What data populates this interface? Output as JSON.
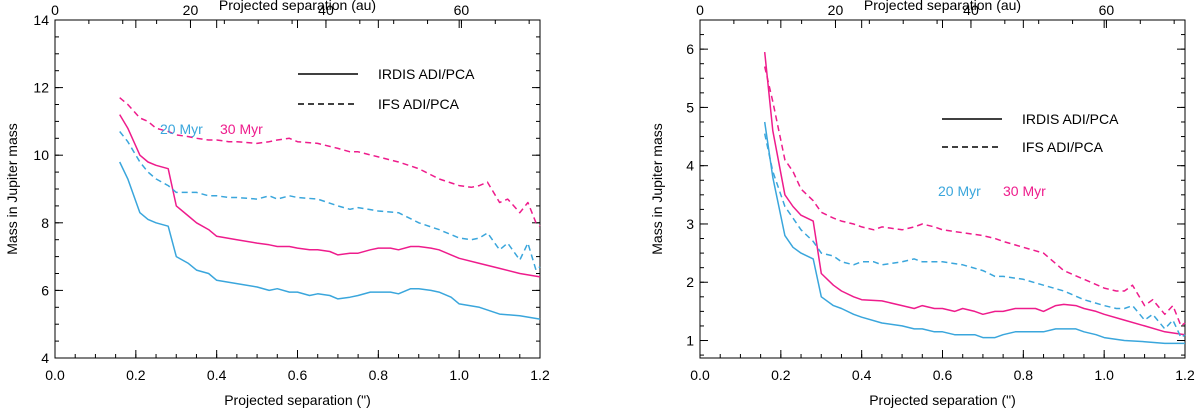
{
  "chart_data": [
    {
      "type": "line",
      "xlabel": "Projected separation (\")",
      "ylabel": "Mass in Jupiter mass",
      "top_xlabel": "Projected separation (au)",
      "xlim": [
        0.0,
        1.2
      ],
      "ylim": [
        4,
        14
      ],
      "xticks": [
        0.0,
        0.2,
        0.4,
        0.6,
        0.8,
        1.0,
        1.2
      ],
      "xtick_labels": [
        "0.0",
        "0.2",
        "0.4",
        "0.6",
        "0.8",
        "1.0",
        "1.2"
      ],
      "yticks": [
        4,
        6,
        8,
        10,
        12,
        14
      ],
      "ytick_labels": [
        "4",
        "6",
        "8",
        "10",
        "12",
        "14"
      ],
      "top_xlim": [
        0,
        71.6
      ],
      "top_xticks": [
        0,
        20,
        40,
        60
      ],
      "top_xtick_labels": [
        "0",
        "20",
        "40",
        "60"
      ],
      "legend": {
        "irdis_label": "IRDIS ADI/PCA",
        "ifs_label": "IFS ADI/PCA",
        "age1_label": "20 Myr",
        "age2_label": "30 Myr"
      },
      "colors": {
        "age1": "#3aa6dc",
        "age2": "#ee1c8c"
      },
      "series": [
        {
          "name": "IRDIS 20 Myr",
          "style": "solid",
          "color": "#3aa6dc",
          "x": [
            0.16,
            0.18,
            0.21,
            0.23,
            0.25,
            0.28,
            0.3,
            0.33,
            0.35,
            0.38,
            0.4,
            0.45,
            0.5,
            0.53,
            0.55,
            0.58,
            0.6,
            0.63,
            0.65,
            0.68,
            0.7,
            0.73,
            0.75,
            0.78,
            0.8,
            0.83,
            0.85,
            0.88,
            0.9,
            0.93,
            0.95,
            0.98,
            1.0,
            1.05,
            1.1,
            1.15,
            1.2
          ],
          "values": [
            9.8,
            9.3,
            8.3,
            8.1,
            8.0,
            7.9,
            7.0,
            6.8,
            6.6,
            6.5,
            6.3,
            6.2,
            6.1,
            6.0,
            6.05,
            5.95,
            5.95,
            5.85,
            5.9,
            5.85,
            5.75,
            5.8,
            5.85,
            5.95,
            5.95,
            5.95,
            5.9,
            6.05,
            6.05,
            6.0,
            5.95,
            5.8,
            5.6,
            5.5,
            5.3,
            5.25,
            5.15
          ]
        },
        {
          "name": "IRDIS 30 Myr",
          "style": "solid",
          "color": "#ee1c8c",
          "x": [
            0.16,
            0.18,
            0.21,
            0.23,
            0.25,
            0.28,
            0.3,
            0.33,
            0.35,
            0.38,
            0.4,
            0.45,
            0.5,
            0.53,
            0.55,
            0.58,
            0.6,
            0.63,
            0.65,
            0.68,
            0.7,
            0.73,
            0.75,
            0.78,
            0.8,
            0.83,
            0.85,
            0.88,
            0.9,
            0.93,
            0.95,
            0.98,
            1.0,
            1.05,
            1.1,
            1.15,
            1.2
          ],
          "values": [
            11.2,
            10.8,
            10.0,
            9.8,
            9.7,
            9.6,
            8.5,
            8.2,
            8.0,
            7.8,
            7.6,
            7.5,
            7.4,
            7.35,
            7.3,
            7.3,
            7.25,
            7.2,
            7.2,
            7.15,
            7.05,
            7.1,
            7.1,
            7.2,
            7.25,
            7.25,
            7.2,
            7.3,
            7.3,
            7.25,
            7.2,
            7.05,
            6.95,
            6.8,
            6.65,
            6.5,
            6.4
          ]
        },
        {
          "name": "IFS 20 Myr",
          "style": "dashed",
          "color": "#3aa6dc",
          "x": [
            0.16,
            0.18,
            0.21,
            0.23,
            0.25,
            0.28,
            0.3,
            0.33,
            0.35,
            0.38,
            0.4,
            0.43,
            0.45,
            0.5,
            0.53,
            0.55,
            0.58,
            0.6,
            0.65,
            0.7,
            0.73,
            0.75,
            0.8,
            0.85,
            0.9,
            0.95,
            1.0,
            1.03,
            1.05,
            1.07,
            1.1,
            1.12,
            1.15,
            1.17,
            1.19,
            1.2
          ],
          "values": [
            10.7,
            10.4,
            9.8,
            9.5,
            9.3,
            9.1,
            8.9,
            8.9,
            8.9,
            8.8,
            8.8,
            8.75,
            8.75,
            8.7,
            8.8,
            8.7,
            8.8,
            8.75,
            8.7,
            8.5,
            8.4,
            8.45,
            8.35,
            8.3,
            8.0,
            7.8,
            7.55,
            7.5,
            7.55,
            7.7,
            7.2,
            7.4,
            6.9,
            7.4,
            6.6,
            6.7
          ]
        },
        {
          "name": "IFS 30 Myr",
          "style": "dashed",
          "color": "#ee1c8c",
          "x": [
            0.16,
            0.18,
            0.21,
            0.23,
            0.25,
            0.28,
            0.3,
            0.33,
            0.35,
            0.38,
            0.4,
            0.43,
            0.45,
            0.5,
            0.53,
            0.55,
            0.58,
            0.6,
            0.65,
            0.7,
            0.73,
            0.75,
            0.8,
            0.85,
            0.9,
            0.95,
            1.0,
            1.03,
            1.05,
            1.07,
            1.1,
            1.12,
            1.15,
            1.17,
            1.19,
            1.2
          ],
          "values": [
            11.7,
            11.5,
            11.1,
            11.0,
            10.8,
            10.7,
            10.6,
            10.55,
            10.5,
            10.45,
            10.45,
            10.4,
            10.4,
            10.35,
            10.4,
            10.45,
            10.5,
            10.4,
            10.35,
            10.2,
            10.1,
            10.1,
            9.95,
            9.8,
            9.6,
            9.3,
            9.1,
            9.05,
            9.1,
            9.2,
            8.6,
            8.7,
            8.3,
            8.6,
            8.0,
            7.9
          ]
        }
      ]
    },
    {
      "type": "line",
      "xlabel": "Projected separation (\")",
      "ylabel": "Mass in Jupiter mass",
      "top_xlabel": "Projected separation (au)",
      "xlim": [
        0.0,
        1.2
      ],
      "ylim": [
        0.7,
        6.5
      ],
      "xticks": [
        0.0,
        0.2,
        0.4,
        0.6,
        0.8,
        1.0,
        1.2
      ],
      "xtick_labels": [
        "0.0",
        "0.2",
        "0.4",
        "0.6",
        "0.8",
        "1.0",
        "1.2"
      ],
      "yticks": [
        1,
        2,
        3,
        4,
        5,
        6
      ],
      "ytick_labels": [
        "1",
        "2",
        "3",
        "4",
        "5",
        "6"
      ],
      "top_xlim": [
        0,
        71.6
      ],
      "top_xticks": [
        0,
        20,
        40,
        60
      ],
      "top_xtick_labels": [
        "0",
        "20",
        "40",
        "60"
      ],
      "legend": {
        "irdis_label": "IRDIS ADI/PCA",
        "ifs_label": "IFS ADI/PCA",
        "age1_label": "20 Myr",
        "age2_label": "30 Myr"
      },
      "colors": {
        "age1": "#3aa6dc",
        "age2": "#ee1c8c"
      },
      "series": [
        {
          "name": "IRDIS 20 Myr",
          "style": "solid",
          "color": "#3aa6dc",
          "x": [
            0.16,
            0.18,
            0.21,
            0.23,
            0.25,
            0.28,
            0.3,
            0.33,
            0.35,
            0.38,
            0.4,
            0.45,
            0.5,
            0.53,
            0.55,
            0.58,
            0.6,
            0.63,
            0.65,
            0.68,
            0.7,
            0.73,
            0.75,
            0.78,
            0.8,
            0.83,
            0.85,
            0.88,
            0.9,
            0.93,
            0.95,
            0.98,
            1.0,
            1.05,
            1.1,
            1.15,
            1.2
          ],
          "values": [
            4.75,
            3.8,
            2.8,
            2.6,
            2.5,
            2.4,
            1.75,
            1.6,
            1.55,
            1.45,
            1.4,
            1.3,
            1.25,
            1.2,
            1.2,
            1.15,
            1.15,
            1.1,
            1.1,
            1.1,
            1.05,
            1.05,
            1.1,
            1.15,
            1.15,
            1.15,
            1.15,
            1.2,
            1.2,
            1.2,
            1.15,
            1.1,
            1.05,
            1.0,
            0.98,
            0.95,
            0.95
          ]
        },
        {
          "name": "IRDIS 30 Myr",
          "style": "solid",
          "color": "#ee1c8c",
          "x": [
            0.16,
            0.18,
            0.21,
            0.23,
            0.25,
            0.28,
            0.3,
            0.33,
            0.35,
            0.38,
            0.4,
            0.45,
            0.5,
            0.53,
            0.55,
            0.58,
            0.6,
            0.63,
            0.65,
            0.68,
            0.7,
            0.73,
            0.75,
            0.78,
            0.8,
            0.83,
            0.85,
            0.88,
            0.9,
            0.93,
            0.95,
            0.98,
            1.0,
            1.05,
            1.1,
            1.15,
            1.2
          ],
          "values": [
            5.95,
            4.6,
            3.5,
            3.3,
            3.15,
            3.05,
            2.15,
            1.95,
            1.85,
            1.75,
            1.7,
            1.68,
            1.6,
            1.55,
            1.6,
            1.55,
            1.55,
            1.5,
            1.55,
            1.5,
            1.45,
            1.5,
            1.5,
            1.55,
            1.55,
            1.55,
            1.5,
            1.6,
            1.62,
            1.6,
            1.55,
            1.5,
            1.45,
            1.35,
            1.25,
            1.15,
            1.1
          ]
        },
        {
          "name": "IFS 20 Myr",
          "style": "dashed",
          "color": "#3aa6dc",
          "x": [
            0.16,
            0.18,
            0.21,
            0.23,
            0.25,
            0.28,
            0.3,
            0.33,
            0.35,
            0.38,
            0.4,
            0.43,
            0.45,
            0.5,
            0.53,
            0.55,
            0.58,
            0.6,
            0.65,
            0.7,
            0.73,
            0.75,
            0.8,
            0.85,
            0.9,
            0.95,
            1.0,
            1.03,
            1.05,
            1.07,
            1.1,
            1.12,
            1.15,
            1.17,
            1.19,
            1.2
          ],
          "values": [
            4.55,
            3.9,
            3.3,
            3.1,
            2.9,
            2.7,
            2.5,
            2.45,
            2.35,
            2.3,
            2.35,
            2.35,
            2.3,
            2.35,
            2.4,
            2.35,
            2.35,
            2.35,
            2.3,
            2.2,
            2.1,
            2.1,
            2.05,
            1.95,
            1.85,
            1.7,
            1.6,
            1.55,
            1.55,
            1.6,
            1.35,
            1.45,
            1.2,
            1.35,
            1.05,
            1.1
          ]
        },
        {
          "name": "IFS 30 Myr",
          "style": "dashed",
          "color": "#ee1c8c",
          "x": [
            0.16,
            0.18,
            0.21,
            0.23,
            0.25,
            0.28,
            0.3,
            0.33,
            0.35,
            0.38,
            0.4,
            0.43,
            0.45,
            0.5,
            0.53,
            0.55,
            0.58,
            0.6,
            0.65,
            0.7,
            0.73,
            0.75,
            0.8,
            0.85,
            0.9,
            0.95,
            1.0,
            1.03,
            1.05,
            1.07,
            1.1,
            1.12,
            1.15,
            1.17,
            1.19,
            1.2
          ],
          "values": [
            5.7,
            5.1,
            4.1,
            3.9,
            3.6,
            3.4,
            3.2,
            3.1,
            3.05,
            3.0,
            2.95,
            2.9,
            2.95,
            2.9,
            2.95,
            3.0,
            2.95,
            2.9,
            2.85,
            2.8,
            2.75,
            2.7,
            2.6,
            2.5,
            2.2,
            2.05,
            1.9,
            1.85,
            1.85,
            1.95,
            1.6,
            1.7,
            1.45,
            1.6,
            1.25,
            1.3
          ]
        }
      ]
    }
  ]
}
